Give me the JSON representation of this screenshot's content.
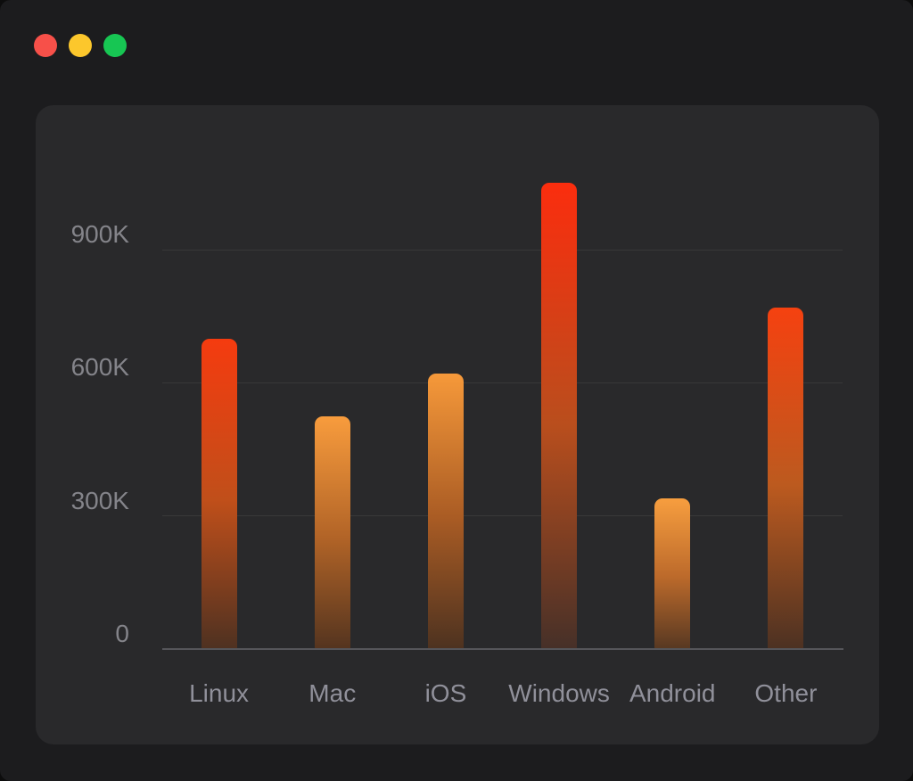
{
  "window": {
    "background": "#1c1c1e",
    "traffic_lights": [
      {
        "name": "close",
        "color": "#f75049"
      },
      {
        "name": "minimize",
        "color": "#fcc72c"
      },
      {
        "name": "zoom",
        "color": "#17c653"
      }
    ]
  },
  "panel": {
    "background": "#29292b"
  },
  "chart_data": {
    "type": "bar",
    "title": "",
    "xlabel": "",
    "ylabel": "",
    "categories": [
      "Linux",
      "Mac",
      "iOS",
      "Windows",
      "Android",
      "Other"
    ],
    "values": [
      700000,
      525000,
      620000,
      1050000,
      340000,
      770000
    ],
    "value_display": [
      "700K",
      "525K",
      "620K",
      "1050K",
      "340K",
      "770K"
    ],
    "ylim": [
      0,
      1100000
    ],
    "y_ticks": [
      {
        "label": "0",
        "value": 0
      },
      {
        "label": "300K",
        "value": 300000
      },
      {
        "label": "600K",
        "value": 600000
      },
      {
        "label": "900K",
        "value": 900000
      }
    ],
    "grid": true,
    "legend": false,
    "colors": {
      "axis_label": "#84848a",
      "category_label": "#90909a",
      "gridline": "rgba(255,255,255,0.07)",
      "baseline": "#55555a"
    },
    "bar_styles": [
      {
        "category": "Linux",
        "top": "#f53b0f",
        "mid": "#c04f1a",
        "bottom": "#4e3121"
      },
      {
        "category": "Mac",
        "top": "#f89c3d",
        "mid": "#b26427",
        "bottom": "#54341f"
      },
      {
        "category": "iOS",
        "top": "#f6993a",
        "mid": "#aa5c24",
        "bottom": "#4d3220"
      },
      {
        "category": "Windows",
        "top": "#fb2d0e",
        "mid": "#b94e1d",
        "bottom": "#463028"
      },
      {
        "category": "Android",
        "top": "#f79e3f",
        "mid": "#bc6a2b",
        "bottom": "#573822"
      },
      {
        "category": "Other",
        "top": "#f54110",
        "mid": "#bc5a1f",
        "bottom": "#4c3122"
      }
    ]
  }
}
